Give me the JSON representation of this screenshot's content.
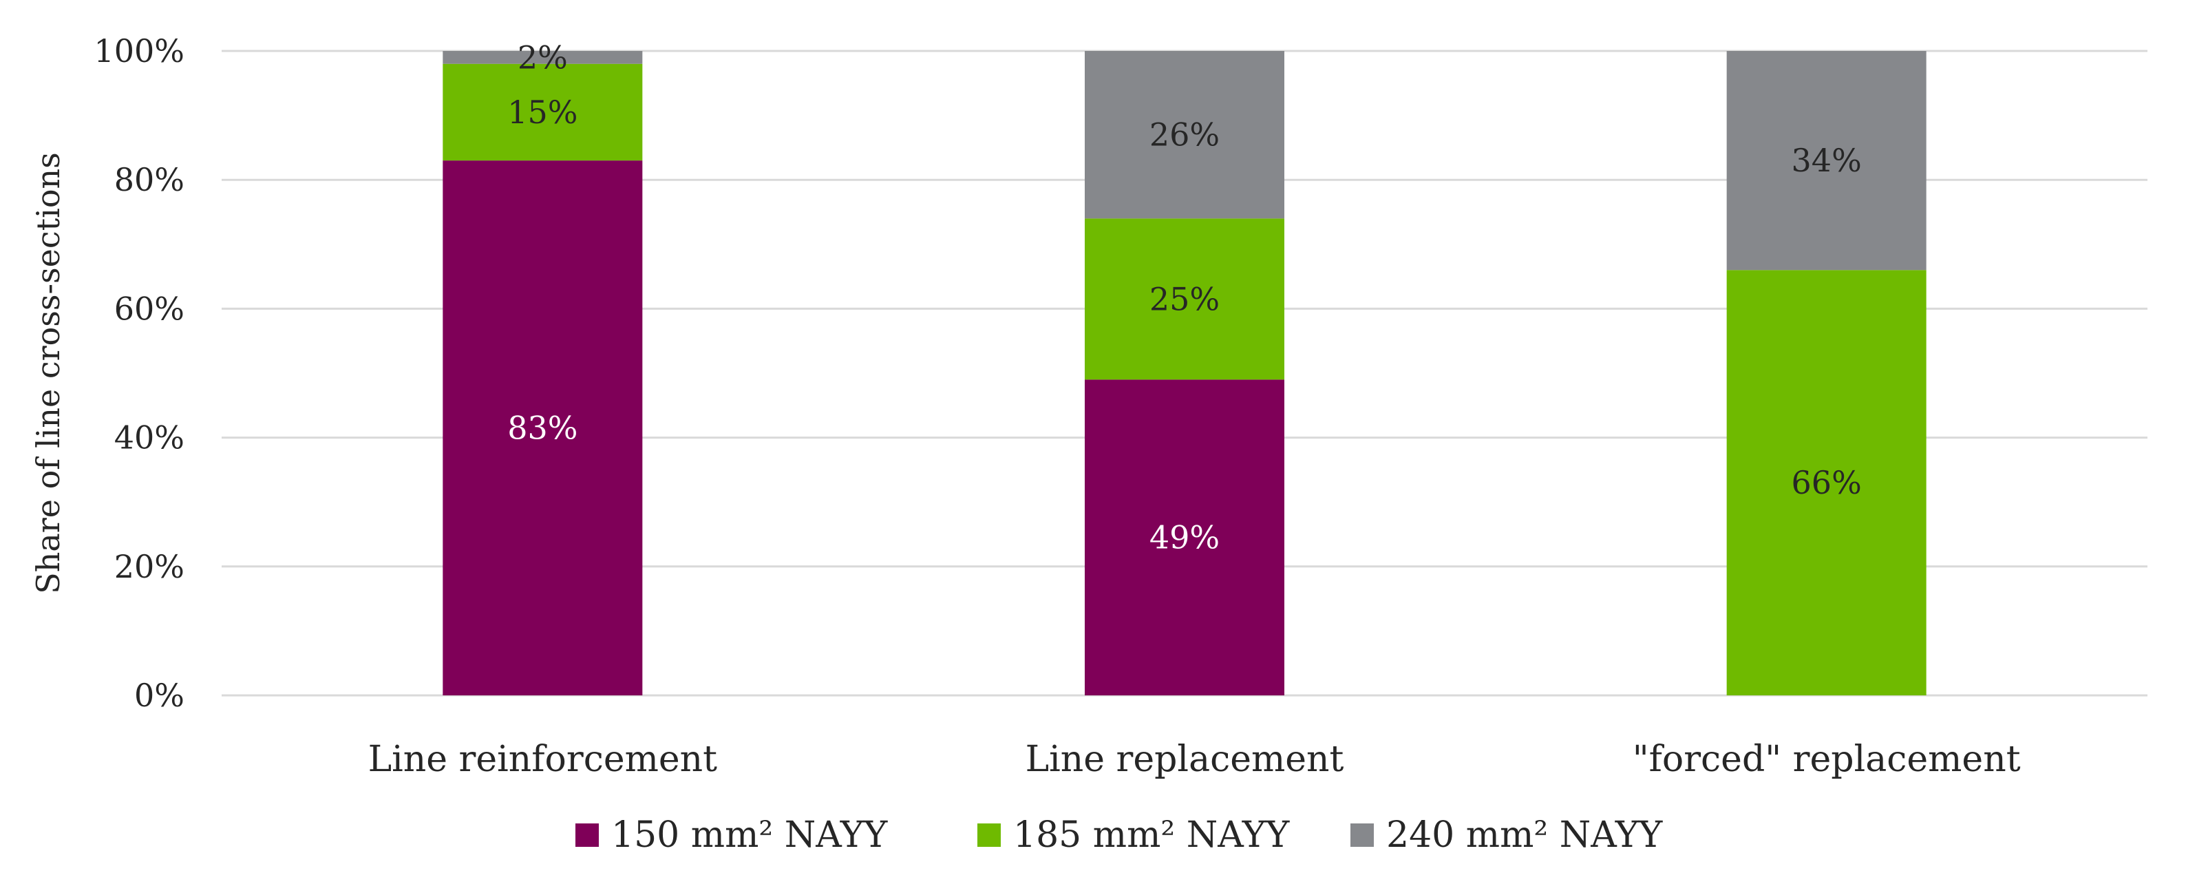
{
  "chart_data": {
    "type": "bar",
    "stacked": true,
    "ylabel": "Share of line cross-sections",
    "ylim": [
      0,
      100
    ],
    "yticks": [
      "0%",
      "20%",
      "40%",
      "60%",
      "80%",
      "100%"
    ],
    "grid": true,
    "legend_position": "bottom",
    "categories": [
      "Line reinforcement",
      "Line replacement",
      "\"forced\" replacement"
    ],
    "series": [
      {
        "name": "150 mm² NAYY",
        "color": "#7f0058",
        "label_color": "#ffffff",
        "values": [
          83,
          49,
          0
        ],
        "labels": [
          "83%",
          "49%",
          ""
        ]
      },
      {
        "name": "185 mm² NAYY",
        "color": "#6fba00",
        "label_color": "#262626",
        "values": [
          15,
          25,
          66
        ],
        "labels": [
          "15%",
          "25%",
          "66%"
        ]
      },
      {
        "name": "240 mm² NAYY",
        "color": "#86888c",
        "label_color": "#262626",
        "values": [
          2,
          26,
          34
        ],
        "labels": [
          "2%",
          "26%",
          "34%"
        ]
      }
    ]
  }
}
